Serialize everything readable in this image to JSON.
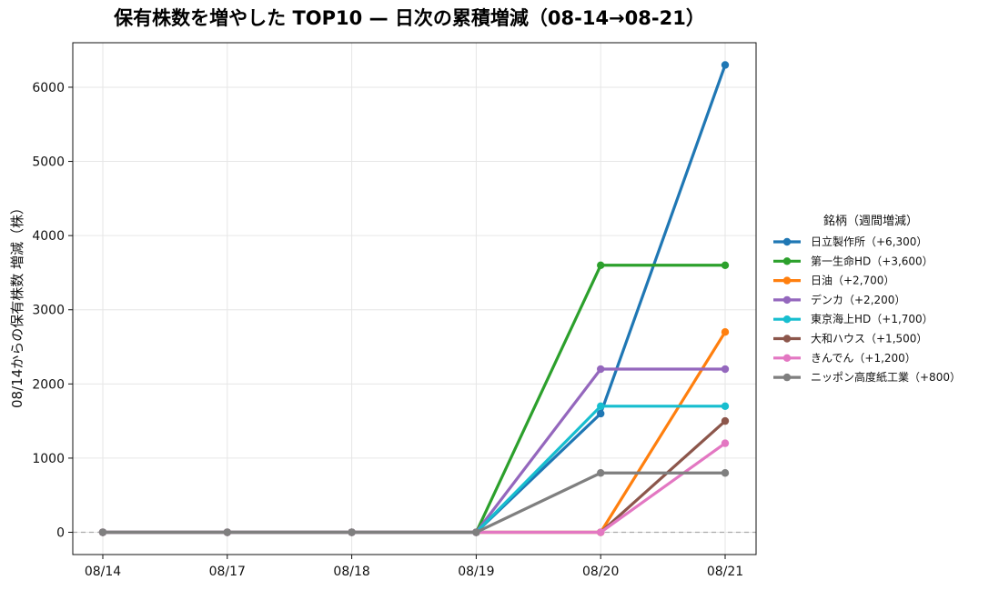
{
  "chart_data": {
    "type": "line",
    "title": "保有株数を増やした TOP10 — 日次の累積増減（08-14→08-21）",
    "xlabel": "",
    "ylabel": "08/14からの保有株数 増減（株）",
    "categories": [
      "08/14",
      "08/17",
      "08/18",
      "08/19",
      "08/20",
      "08/21"
    ],
    "ylim": [
      -300,
      6600
    ],
    "yticks": [
      0,
      1000,
      2000,
      3000,
      4000,
      5000,
      6000
    ],
    "grid": true,
    "zero_line": true,
    "legend": {
      "title": "銘柄（週間増減）",
      "placement": "right"
    },
    "series": [
      {
        "name": "日立製作所（+6,300）",
        "color": "#1f77b4",
        "values": [
          0,
          0,
          0,
          0,
          1600,
          6300
        ]
      },
      {
        "name": "第一生命HD（+3,600）",
        "color": "#2ca02c",
        "values": [
          0,
          0,
          0,
          0,
          3600,
          3600
        ]
      },
      {
        "name": "日油（+2,700）",
        "color": "#ff7f0e",
        "values": [
          0,
          0,
          0,
          0,
          0,
          2700
        ]
      },
      {
        "name": "デンカ（+2,200）",
        "color": "#9467bd",
        "values": [
          0,
          0,
          0,
          0,
          2200,
          2200
        ]
      },
      {
        "name": "東京海上HD（+1,700）",
        "color": "#17becf",
        "values": [
          0,
          0,
          0,
          0,
          1700,
          1700
        ]
      },
      {
        "name": "大和ハウス（+1,500）",
        "color": "#8c564b",
        "values": [
          0,
          0,
          0,
          0,
          0,
          1500
        ]
      },
      {
        "name": "きんでん（+1,200）",
        "color": "#e377c2",
        "values": [
          0,
          0,
          0,
          0,
          0,
          1200
        ]
      },
      {
        "name": "ニッポン高度紙工業（+800）",
        "color": "#7f7f7f",
        "values": [
          0,
          0,
          0,
          0,
          800,
          800
        ]
      }
    ]
  }
}
